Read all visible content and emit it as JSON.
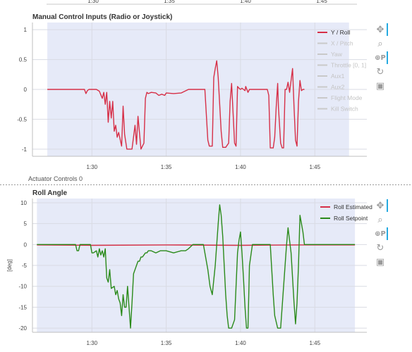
{
  "top_partial_axis": {
    "ticks": [
      "1:30",
      "1:35",
      "1:40",
      "1:45"
    ]
  },
  "next_panel_partial_title": "Actuator Controls 0",
  "chart_data": [
    {
      "type": "line",
      "title": "Manual Control Inputs (Radio or Joystick)",
      "xlabel": "",
      "ylabel": "",
      "x_unit": "seconds",
      "xlim": [
        86.0,
        108.5
      ],
      "ylim": [
        -1.12,
        1.12
      ],
      "x_ticks": [
        {
          "v": 90,
          "label": "1:30"
        },
        {
          "v": 95,
          "label": "1:35"
        },
        {
          "v": 100,
          "label": "1:40"
        },
        {
          "v": 105,
          "label": "1:45"
        }
      ],
      "y_ticks": [
        {
          "v": 1,
          "label": "1"
        },
        {
          "v": 0.5,
          "label": "0.5"
        },
        {
          "v": 0,
          "label": "0"
        },
        {
          "v": -0.5,
          "label": "-0.5"
        },
        {
          "v": -1,
          "label": "-1"
        }
      ],
      "grid": true,
      "shaded_region": [
        87.0,
        107.3
      ],
      "legend_placement": "top-right",
      "legend": [
        {
          "label": "Y / Roll",
          "color": "#d62f47",
          "active": true
        },
        {
          "label": "X / Pitch",
          "color": "#c9c9c9",
          "active": false
        },
        {
          "label": "Yaw",
          "color": "#c9c9c9",
          "active": false
        },
        {
          "label": "Throttle [0, 1]",
          "color": "#c9c9c9",
          "active": false
        },
        {
          "label": "Aux1",
          "color": "#c9c9c9",
          "active": false
        },
        {
          "label": "Aux2",
          "color": "#c9c9c9",
          "active": false
        },
        {
          "label": "Flight Mode",
          "color": "#c9c9c9",
          "active": false
        },
        {
          "label": "Kill Switch",
          "color": "#c9c9c9",
          "active": false
        }
      ],
      "series": [
        {
          "name": "Y / Roll",
          "color": "#d62f47",
          "x": [
            87.0,
            89.5,
            89.6,
            89.7,
            89.8,
            90.3,
            90.5,
            90.7,
            90.8,
            90.9,
            91.0,
            91.1,
            91.2,
            91.3,
            91.4,
            91.5,
            91.6,
            91.7,
            91.8,
            92.0,
            92.1,
            92.2,
            92.35,
            92.5,
            92.7,
            92.9,
            93.0,
            93.1,
            93.3,
            93.5,
            93.6,
            93.7,
            93.8,
            94.0,
            94.3,
            94.5,
            94.7,
            94.9,
            95.0,
            95.5,
            96.0,
            96.5,
            97.0,
            97.6,
            97.8,
            97.9,
            98.1,
            98.2,
            98.3,
            98.4,
            98.5,
            98.6,
            98.7,
            98.8,
            98.9,
            99.0,
            99.2,
            99.3,
            99.4,
            99.5,
            99.6,
            99.7,
            99.8,
            99.9,
            100.0,
            100.1,
            100.2,
            100.3,
            100.35,
            100.5,
            100.6,
            100.8,
            101.0,
            101.5,
            101.8,
            101.9,
            102.0,
            102.1,
            102.2,
            102.3,
            102.4,
            102.5,
            102.55,
            102.7,
            102.8,
            102.9,
            103.0,
            103.1,
            103.2,
            103.3,
            103.4,
            103.5,
            103.6,
            103.7,
            103.8,
            103.9,
            104.0,
            104.1,
            104.2,
            104.3
          ],
          "y": [
            0,
            0,
            -0.07,
            -0.02,
            0,
            0,
            -0.03,
            -0.15,
            -0.05,
            -0.25,
            -0.05,
            -0.55,
            -0.2,
            -0.48,
            -0.2,
            -0.7,
            -0.6,
            -0.8,
            -0.72,
            -0.95,
            -0.28,
            -0.75,
            -1.0,
            -1.0,
            -1.0,
            -0.6,
            -0.92,
            -0.45,
            -1.0,
            -0.9,
            -0.15,
            -0.05,
            -0.07,
            -0.05,
            -0.06,
            -0.1,
            -0.08,
            -0.1,
            -0.06,
            -0.07,
            -0.06,
            0,
            0,
            0,
            -0.85,
            -0.95,
            -0.95,
            0.2,
            0.35,
            0.48,
            0.2,
            -0.25,
            -0.7,
            -0.97,
            -0.97,
            -0.97,
            -0.9,
            -0.2,
            0.1,
            -0.4,
            -0.9,
            -0.95,
            0.05,
            0.02,
            0,
            0.02,
            0,
            -0.02,
            0.05,
            -0.05,
            0,
            0,
            0,
            0,
            0,
            -0.1,
            -0.98,
            -0.98,
            -0.98,
            -0.8,
            -0.3,
            0.1,
            -0.3,
            -0.9,
            -0.98,
            -0.98,
            0,
            0,
            0.12,
            -0.05,
            0.15,
            0.35,
            -0.3,
            -0.85,
            -0.95,
            -0.2,
            0.15,
            -0.02,
            0,
            0
          ]
        }
      ]
    },
    {
      "type": "line",
      "title": "Roll Angle",
      "xlabel": "",
      "ylabel": "[deg]",
      "x_unit": "seconds",
      "xlim": [
        86.0,
        108.5
      ],
      "ylim": [
        -21,
        11
      ],
      "x_ticks": [
        {
          "v": 90,
          "label": "1:30"
        },
        {
          "v": 95,
          "label": "1:35"
        },
        {
          "v": 100,
          "label": "1:40"
        },
        {
          "v": 105,
          "label": "1:45"
        }
      ],
      "y_ticks": [
        {
          "v": 10,
          "label": "10"
        },
        {
          "v": 5,
          "label": "5"
        },
        {
          "v": 0,
          "label": "0"
        },
        {
          "v": -5,
          "label": "-5"
        },
        {
          "v": -10,
          "label": "-10"
        },
        {
          "v": -15,
          "label": "-15"
        },
        {
          "v": -20,
          "label": "-20"
        }
      ],
      "grid": true,
      "shaded_region": [
        86.3,
        107.7
      ],
      "legend_placement": "top-right",
      "legend": [
        {
          "label": "Roll Estimated",
          "color": "#d62f47",
          "active": true
        },
        {
          "label": "Roll Setpoint",
          "color": "#2a8a1a",
          "active": true
        }
      ],
      "series": [
        {
          "name": "Roll Estimated",
          "color": "#d62f47",
          "x": [
            86.3,
            90.0,
            95.0,
            100.0,
            104.0,
            107.7
          ],
          "y": [
            -0.1,
            -0.2,
            -0.1,
            -0.2,
            -0.1,
            -0.1
          ]
        },
        {
          "name": "Roll Setpoint",
          "color": "#2a8a1a",
          "x": [
            86.3,
            88.9,
            89.0,
            89.1,
            89.2,
            89.9,
            90.0,
            90.1,
            90.3,
            90.4,
            90.5,
            90.6,
            90.7,
            90.8,
            90.9,
            91.0,
            91.1,
            91.2,
            91.3,
            91.5,
            91.6,
            91.7,
            91.8,
            91.9,
            92.0,
            92.1,
            92.2,
            92.3,
            92.4,
            92.5,
            92.6,
            92.7,
            92.8,
            93.0,
            93.1,
            93.2,
            93.3,
            93.4,
            93.5,
            93.6,
            93.7,
            93.8,
            94.0,
            94.3,
            94.6,
            95.0,
            95.5,
            96.0,
            96.3,
            96.5,
            96.8,
            97.2,
            97.5,
            97.8,
            97.95,
            98.1,
            98.3,
            98.5,
            98.6,
            98.7,
            98.8,
            98.9,
            99.0,
            99.1,
            99.2,
            99.4,
            99.6,
            99.7,
            99.8,
            99.9,
            100.0,
            100.1,
            100.2,
            100.3,
            100.4,
            100.5,
            100.6,
            100.8,
            101.0,
            101.5,
            102.0,
            102.2,
            102.3,
            102.5,
            102.7,
            102.8,
            103.0,
            103.1,
            103.2,
            103.4,
            103.5,
            103.6,
            103.7,
            103.8,
            103.9,
            104.0,
            104.2,
            104.3,
            104.4,
            107.7
          ],
          "y": [
            0,
            0,
            -1.5,
            -1.5,
            0,
            0,
            -2,
            -2,
            -1.5,
            -3,
            -1,
            -2.5,
            -1.5,
            -3,
            -1,
            -8,
            -9,
            -6,
            -10.5,
            -10,
            -12,
            -11,
            -13,
            -14,
            -17,
            -12,
            -15,
            -15,
            -10,
            -15,
            -20,
            -14,
            -7,
            -5,
            -4,
            -4,
            -3,
            -3,
            -2.5,
            -2,
            -2,
            -1.5,
            -1.5,
            -2,
            -1.5,
            -1.5,
            -2,
            -1.5,
            -1.5,
            -1,
            0,
            0,
            0,
            -6,
            -10,
            -12,
            -5,
            5,
            9.5,
            7,
            2,
            -5,
            -12,
            -17,
            -20,
            -20,
            -18,
            -10,
            -2,
            1,
            3,
            -2,
            -8,
            -15,
            -20,
            -20,
            -5,
            0,
            0,
            0,
            0,
            -12,
            -17,
            -20,
            -20,
            -15,
            -5,
            0,
            4,
            -2,
            -8,
            -14,
            -19,
            -14,
            -5,
            7,
            3,
            0,
            0,
            0
          ]
        }
      ]
    }
  ]
}
